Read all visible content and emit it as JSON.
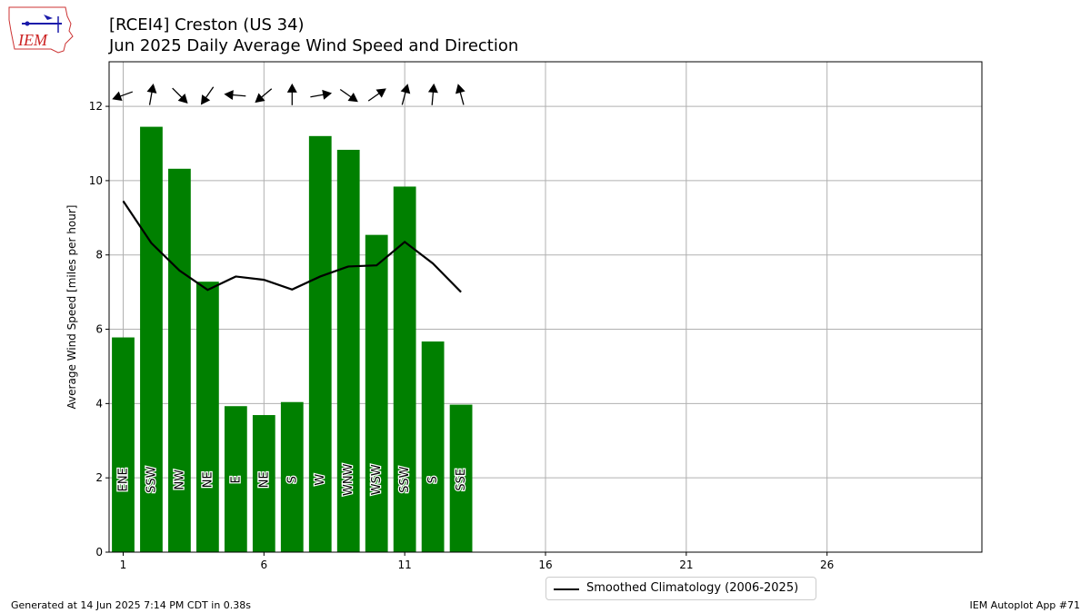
{
  "header": {
    "title_line1": "[RCEI4] Creston (US 34)",
    "title_line2": "Jun 2025 Daily Average Wind Speed and Direction",
    "logo_text": "IEM"
  },
  "footer": {
    "generated": "Generated at 14 Jun 2025 7:14 PM CDT in 0.38s",
    "app": "IEM Autoplot App #71"
  },
  "chart_data": {
    "type": "bar",
    "ylabel": "Average Wind Speed [miles per hour]",
    "xlim": [
      0.5,
      31.5
    ],
    "ylim": [
      0,
      13.2
    ],
    "xticks": [
      1,
      6,
      11,
      16,
      21,
      26
    ],
    "yticks": [
      0,
      2,
      4,
      6,
      8,
      10,
      12
    ],
    "grid": true,
    "legend_position": "bottom-center",
    "days": [
      1,
      2,
      3,
      4,
      5,
      6,
      7,
      8,
      9,
      10,
      11,
      12,
      13
    ],
    "values": [
      5.78,
      11.45,
      10.32,
      7.28,
      3.93,
      3.69,
      4.04,
      11.2,
      10.83,
      8.54,
      9.84,
      5.67,
      3.97
    ],
    "directions": [
      "ENE",
      "SSW",
      "NW",
      "NE",
      "E",
      "NE",
      "S",
      "W",
      "WNW",
      "WSW",
      "SSW",
      "S",
      "SSE"
    ],
    "bar_color": "#008000",
    "arrows": {
      "y": 12.3,
      "angles_deg": [
        200,
        80,
        315,
        235,
        175,
        220,
        90,
        10,
        325,
        35,
        75,
        85,
        105
      ]
    },
    "series": [
      {
        "name": "Smoothed Climatology (2006-2025)",
        "color": "#000000",
        "values": [
          9.45,
          8.32,
          7.58,
          7.06,
          7.42,
          7.33,
          7.07,
          7.42,
          7.69,
          7.72,
          8.35,
          7.77,
          7.0
        ]
      }
    ]
  }
}
